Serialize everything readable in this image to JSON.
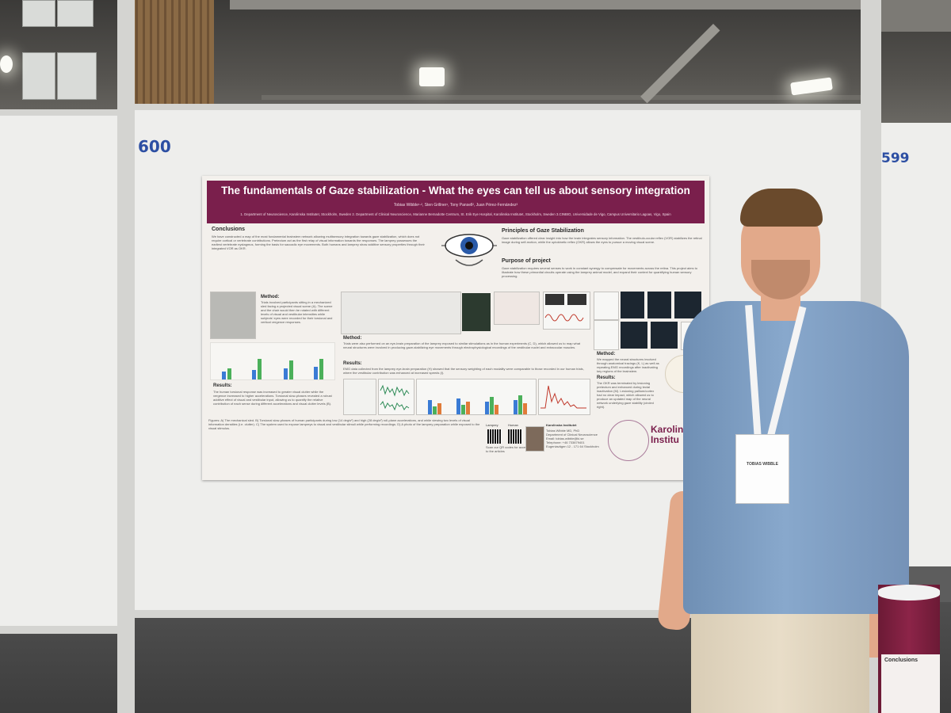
{
  "board_numbers": {
    "left": "600",
    "right": "599"
  },
  "poster": {
    "title": "The fundamentals of Gaze stabilization - What the eyes can tell us about sensory integration",
    "authors": "Tobias Wibble¹·², Sten Grillner¹, Tony Pansell², Juan Pérez-Fernández³",
    "affiliations": "1. Department of Neuroscience, Karolinska Institutet, Stockholm, Sweden 2. Department of Clinical Neuroscience, Marianne Bernadotte Centrum, St. Erik Eye Hospital, Karolinska Institutet, Stockholm, Sweden 3.CINBIO, Universidade de Vigo, Campus Universitario Lagoas, Vigo, Spain",
    "conclusions_heading": "Conclusions",
    "conclusions_text": "We have constructed a map of the most fundamental brainstem network allowing multisensory integration towards gaze stabilization, which does not require cortical or vertebrate contributions. Pretectum act as the first relay of visual information towards the responses. The lamprey possesses the earliest vertebrate nystagmus, forming the basis for saccadic eye movements. Both humans and lamprey show additive sensory properties through their integrated VOR as OKR.",
    "principles_heading": "Principles of Gaze Stabilization",
    "principles_text": "Gaze stabilization offered clear insight into how the brain integrates sensory information. The vestibulo-ocular reflex (VOR) stabilizes the retinal image during self-motion, while the optokinetic reflex (OKR) allows the eyes to pursue a moving visual scene.",
    "purpose_heading": "Purpose of project",
    "purpose_text": "Gaze stabilization requires several senses to work in constant synergy to compensate for movements across the retina. This project aims to illustrate how these primordial circuits operate using the lamprey animal model, and expand their context for quantifying human sensory processing.",
    "method1_label": "Method:",
    "method1_text": "Trials involved participants sitting in a mechanized sled facing a projected visual scene (A). The scene and the chair would then be rotated with different levels of visual and vestibular intensities while subjects' eyes were recorded for their torsional and vertical vergence responses.",
    "results1_label": "Results:",
    "results1_text": "The human torsional response was increased to greater visual clutter while the vergence increased to higher accelerations. Torsional slow-phases revealed a robust additive effect of visual and vestibular input, allowing us to quantify the relative contribution of each sense during different accelerations and visual clutter levels (B).",
    "method2_label": "Method:",
    "method2_text": "Trials were also performed on an eye-brain preparation of the lamprey exposed to similar stimulations as in the human experiments (C, D), which allowed us to map what neural structures were involved in producing gaze-stabilizing eye movements through electrophysiological recordings of the vestibular nuclei and extraocular muscles.",
    "results2_label": "Results:",
    "results2_text": "EMG data collected from the lamprey eye-brain preparation (H) showed that the sensory weighting of each modality were comparable to those recorded in our human trials, where the vestibular contribution was enhanced at increased speeds (I).",
    "method3_label": "Method:",
    "method3_text": "We mapped the neural structures involved through anatomical tracings (K, L) as well as repeating EMG recordings after inactivating key regions of the brainstem.",
    "results3_label": "Results:",
    "results3_text": "The OKR was terminated by lesioning pretectum and enhanced during tectal inactivation (M). Lesioning pallium/cortex had no clear impact, which allowed us to produce an updated map of the neural network underlying gaze stability (circled right).",
    "figures_text": "Figures: A) The mechanical sled. B) Torsional slow-phases of human participants during low (14 deg/s²) and high (28 deg/s²) roll-plane accelerations, and while viewing two levels of visual information densities (i.e. clutter). C) The system used to expose lampreys to visual and vestibular stimuli while performing recordings. D) A photo of the lamprey preparation while exposed to the visual stimulus.",
    "qr_labels": [
      "Lamprey",
      "Human"
    ],
    "qr_caption": "Scan our QR codes for access to the articles",
    "contact_org": "Karolinska Institutet",
    "contact_lines": [
      "Tobias Wibble MD, PhD",
      "Department of Clinical Neuroscience",
      "Email: tobias.wibble@ki.se",
      "Telephone: +46 733879401",
      "Eugeniavägen 12 - 171 64 Stockholm"
    ],
    "logo_text": "Karolinska Institutet",
    "logo_visible_text": "Karolin Institu"
  },
  "badge": {
    "name": "TOBIAS WIBBLE"
  },
  "bin_text": "Conclusions"
}
